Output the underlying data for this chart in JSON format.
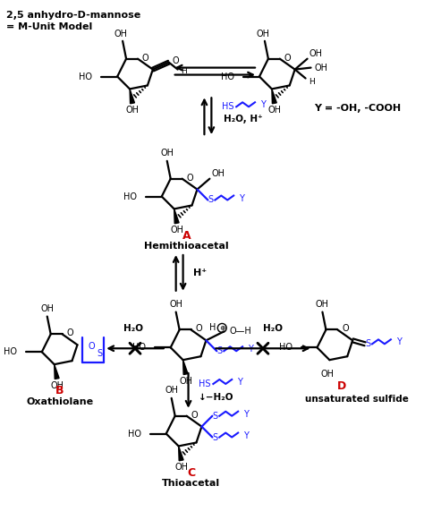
{
  "title_line1": "2,5 anhydro-D-mannose",
  "title_line2": "= M-Unit Model",
  "label_A": "A",
  "label_A_name": "Hemithioacetal",
  "label_B": "B",
  "label_B_name": "Oxathiolane",
  "label_C": "C",
  "label_C_name": "Thioacetal",
  "label_D": "D",
  "label_D_name": "unsaturated sulfide",
  "y_label": "Y = -OH, -COOH",
  "bg_color": "#ffffff",
  "black": "#000000",
  "blue": "#1a1aff",
  "red": "#cc0000"
}
